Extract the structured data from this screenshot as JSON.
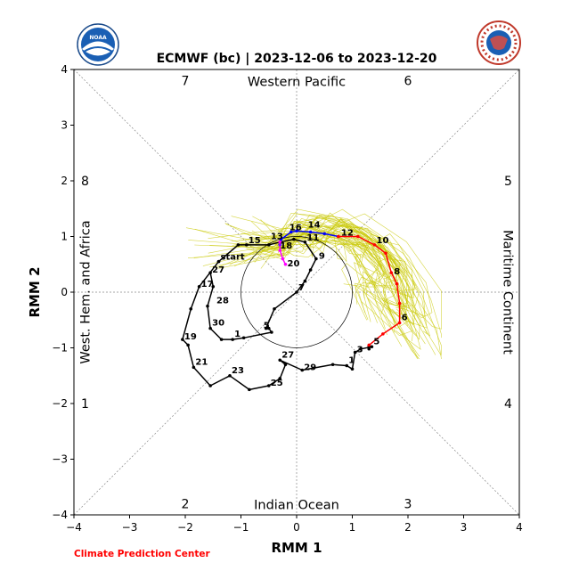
{
  "chart_data": {
    "type": "line",
    "title": "ECMWF (bc) | 2023-12-06 to 2023-12-20",
    "xlabel": "RMM 1",
    "ylabel": "RMM 2",
    "xlim": [
      -4,
      4
    ],
    "ylim": [
      -4,
      4
    ],
    "xticks": [
      "−4",
      "−3",
      "−2",
      "−1",
      "0",
      "1",
      "2",
      "3",
      "4"
    ],
    "yticks": [
      "−4",
      "−3",
      "−2",
      "−1",
      "0",
      "1",
      "2",
      "3",
      "4"
    ],
    "credit": "Climate Prediction Center",
    "phase_numbers": [
      {
        "label": "1",
        "x": -3.8,
        "y": -2.0
      },
      {
        "label": "2",
        "x": -2.0,
        "y": -3.8
      },
      {
        "label": "3",
        "x": 2.0,
        "y": -3.8
      },
      {
        "label": "4",
        "x": 3.8,
        "y": -2.0
      },
      {
        "label": "5",
        "x": 3.8,
        "y": 2.0
      },
      {
        "label": "6",
        "x": 2.0,
        "y": 3.8
      },
      {
        "label": "7",
        "x": -2.0,
        "y": 3.8
      },
      {
        "label": "8",
        "x": -3.8,
        "y": 2.0
      }
    ],
    "region_labels": {
      "top": "Western Pacific",
      "bottom": "Indian Ocean",
      "left": "West. Hem. and Africa",
      "right": "Maritime Continent"
    },
    "series": [
      {
        "color": "#000000",
        "points": [
          [
            -1.4,
            0.55
          ],
          [
            -1.75,
            0.1
          ],
          [
            -1.9,
            -0.3
          ],
          [
            -2.05,
            -0.85
          ],
          [
            -1.95,
            -0.95
          ],
          [
            -1.85,
            -1.35
          ],
          [
            -1.55,
            -1.68
          ],
          [
            -1.2,
            -1.5
          ],
          [
            -0.85,
            -1.75
          ],
          [
            -0.5,
            -1.68
          ],
          [
            -0.3,
            -1.55
          ],
          [
            -0.2,
            -1.3
          ],
          [
            -0.3,
            -1.22
          ],
          [
            0.1,
            -1.4
          ],
          [
            0.65,
            -1.3
          ],
          [
            0.9,
            -1.32
          ],
          [
            1.0,
            -1.38
          ],
          [
            1.05,
            -1.08
          ],
          [
            1.15,
            -1.02
          ],
          [
            1.35,
            -0.98
          ],
          [
            1.3,
            -0.97
          ],
          [
            1.3,
            -1.02
          ]
        ],
        "labels": [
          {
            "text": "start",
            "index": 0,
            "dx": 2,
            "dy": -2
          },
          {
            "text": "17",
            "index": 1,
            "dx": 2,
            "dy": 0
          },
          {
            "text": "19",
            "index": 3,
            "dx": 2,
            "dy": 0
          },
          {
            "text": "21",
            "index": 5,
            "dx": 2,
            "dy": -3
          },
          {
            "text": "23",
            "index": 7,
            "dx": 2,
            "dy": -3
          },
          {
            "text": "25",
            "index": 9,
            "dx": 2,
            "dy": 0
          },
          {
            "text": "27",
            "index": 12,
            "dx": 2,
            "dy": -3
          },
          {
            "text": "29",
            "index": 13,
            "dx": 2,
            "dy": 0
          },
          {
            "text": "1",
            "index": 15,
            "dx": 2,
            "dy": -3
          },
          {
            "text": "3",
            "index": 17,
            "dx": 2,
            "dy": 0
          },
          {
            "text": "5",
            "index": 19,
            "dx": 2,
            "dy": -3
          }
        ]
      },
      {
        "color": "#000000",
        "points": [
          [
            -1.55,
            0.35
          ],
          [
            -1.5,
            0.1
          ],
          [
            -1.6,
            -0.25
          ],
          [
            -1.55,
            -0.65
          ],
          [
            -1.35,
            -0.85
          ],
          [
            -1.15,
            -0.85
          ],
          [
            -0.95,
            -0.82
          ],
          [
            -0.45,
            -0.72
          ],
          [
            -0.5,
            -0.65
          ]
        ],
        "labels": [
          {
            "text": "27",
            "index": 0,
            "dx": 2,
            "dy": 0
          },
          {
            "text": "28",
            "index": 2,
            "dx": 10,
            "dy": -3
          },
          {
            "text": "30",
            "index": 3,
            "dx": 2,
            "dy": -3
          },
          {
            "text": "1",
            "index": 5,
            "dx": 2,
            "dy": -3
          },
          {
            "text": "5",
            "index": 8,
            "dx": -6,
            "dy": 0
          }
        ]
      },
      {
        "color": "#000000",
        "points": [
          [
            -0.55,
            -0.65
          ],
          [
            -0.4,
            -0.3
          ],
          [
            0.0,
            0.0
          ],
          [
            0.15,
            0.2
          ],
          [
            0.25,
            0.4
          ],
          [
            0.35,
            0.6
          ],
          [
            0.15,
            0.9
          ],
          [
            -0.05,
            0.95
          ],
          [
            -0.3,
            0.9
          ],
          [
            -0.5,
            0.85
          ],
          [
            -0.9,
            0.85
          ],
          [
            -1.05,
            0.85
          ],
          [
            -1.4,
            0.55
          ]
        ],
        "labels": [
          {
            "text": "7",
            "index": 2,
            "dx": 2,
            "dy": -2
          },
          {
            "text": "9",
            "index": 5,
            "dx": 3,
            "dy": 0
          },
          {
            "text": "11",
            "index": 6,
            "dx": 2,
            "dy": -2
          },
          {
            "text": "13",
            "index": 7,
            "dx": -26,
            "dy": 0
          },
          {
            "text": "15",
            "index": 10,
            "dx": 2,
            "dy": -2
          }
        ]
      },
      {
        "color": "#0000ff",
        "points": [
          [
            -0.3,
            0.85
          ],
          [
            -0.28,
            0.95
          ],
          [
            -0.1,
            1.08
          ],
          [
            0.0,
            1.1
          ],
          [
            0.25,
            1.08
          ],
          [
            0.5,
            1.05
          ],
          [
            0.75,
            1.0
          ]
        ],
        "labels": [
          {
            "text": "16",
            "index": 2,
            "dx": -2,
            "dy": -2
          },
          {
            "text": "14",
            "index": 4,
            "dx": -3,
            "dy": -5
          },
          {
            "text": "12",
            "index": 6,
            "dx": 3,
            "dy": -1
          }
        ]
      },
      {
        "color": "#ff0000",
        "points": [
          [
            0.75,
            1.0
          ],
          [
            1.1,
            1.0
          ],
          [
            1.4,
            0.85
          ],
          [
            1.6,
            0.7
          ],
          [
            1.7,
            0.35
          ],
          [
            1.8,
            0.15
          ],
          [
            1.85,
            -0.2
          ],
          [
            1.85,
            -0.55
          ],
          [
            1.55,
            -0.75
          ],
          [
            1.3,
            -0.95
          ]
        ],
        "labels": [
          {
            "text": "10",
            "index": 2,
            "dx": 2,
            "dy": -2
          },
          {
            "text": "8",
            "index": 4,
            "dx": 3,
            "dy": 2
          },
          {
            "text": "6",
            "index": 7,
            "dx": 2,
            "dy": -3
          }
        ]
      },
      {
        "color": "#ff00ff",
        "points": [
          [
            -0.3,
            0.9
          ],
          [
            -0.3,
            0.75
          ],
          [
            -0.25,
            0.6
          ],
          [
            -0.2,
            0.5
          ]
        ],
        "labels": [
          {
            "text": "18",
            "index": 1,
            "dx": 0,
            "dy": -2
          },
          {
            "text": "20",
            "index": 3,
            "dx": 2,
            "dy": 2
          }
        ]
      }
    ],
    "ensemble_color": "#c8c800",
    "ensemble_members": 50,
    "grid": false,
    "unit_circle_radius": 1
  }
}
